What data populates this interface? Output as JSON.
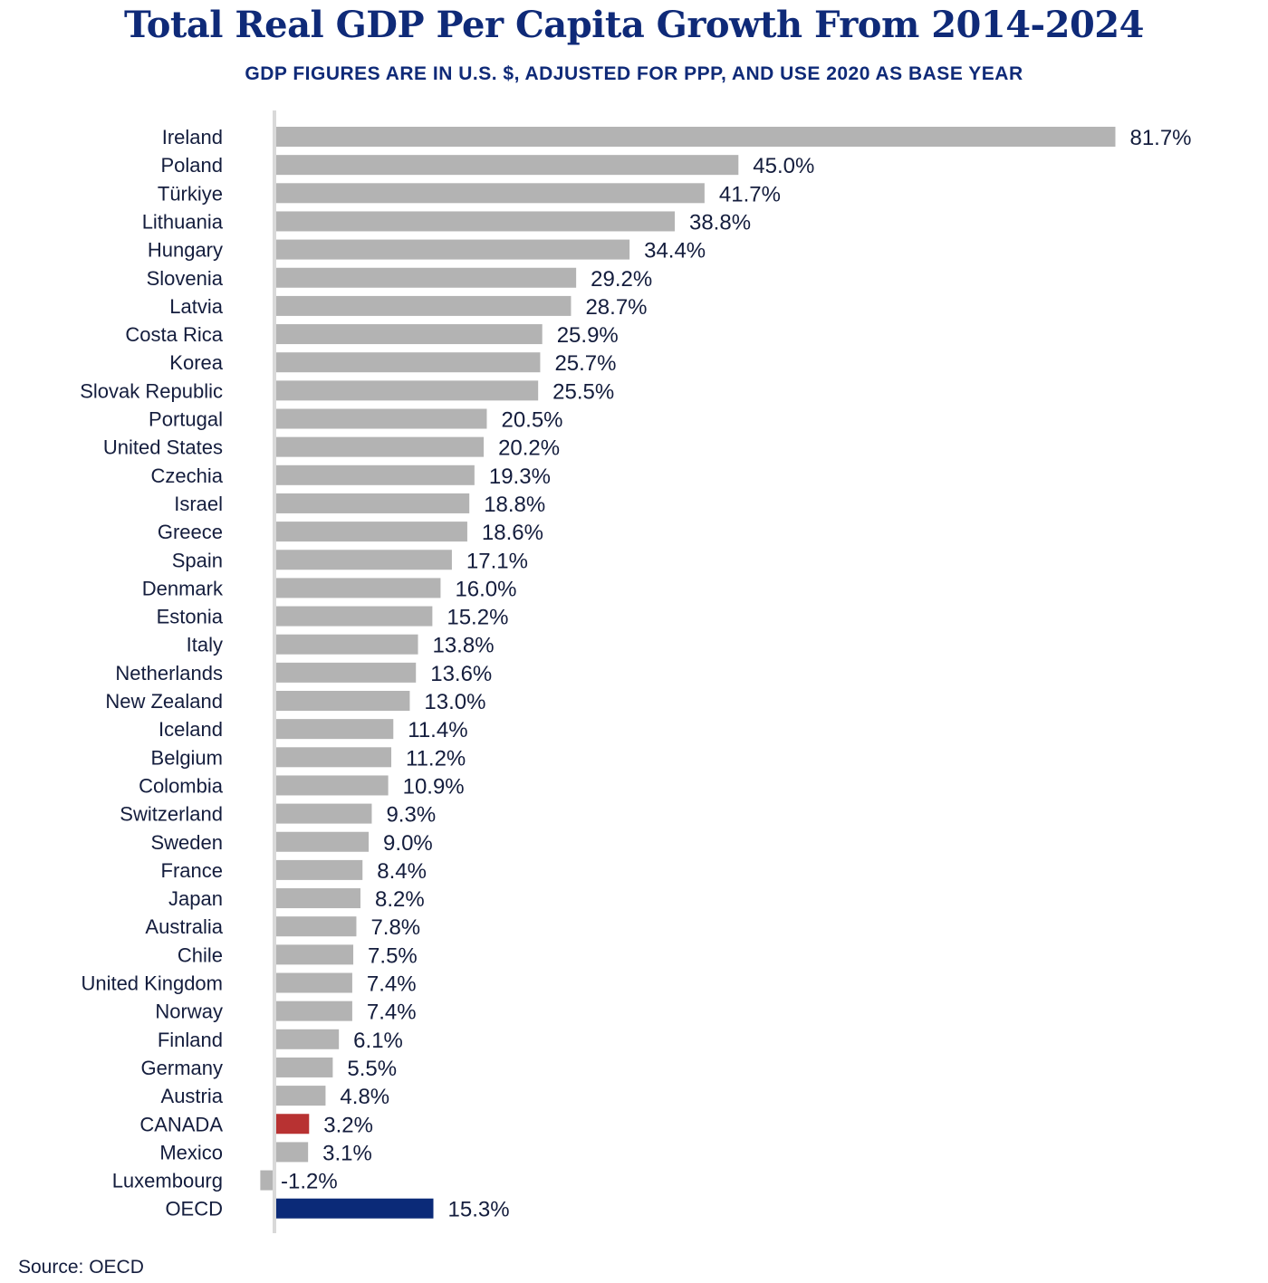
{
  "chart_data": {
    "type": "bar",
    "orientation": "horizontal",
    "title": "Total Real GDP Per Capita Growth From 2014-2024",
    "subtitle": "GDP FIGURES ARE IN U.S. $, ADJUSTED FOR PPP, AND USE 2020 AS BASE YEAR",
    "xlabel": "",
    "ylabel": "",
    "value_suffix": "%",
    "xlim": [
      -1.2,
      81.7
    ],
    "grid": false,
    "legend": "none",
    "categories": [
      "Ireland",
      "Poland",
      "Türkiye",
      "Lithuania",
      "Hungary",
      "Slovenia",
      "Latvia",
      "Costa Rica",
      "Korea",
      "Slovak Republic",
      "Portugal",
      "United States",
      "Czechia",
      "Israel",
      "Greece",
      "Spain",
      "Denmark",
      "Estonia",
      "Italy",
      "Netherlands",
      "New Zealand",
      "Iceland",
      "Belgium",
      "Colombia",
      "Switzerland",
      "Sweden",
      "France",
      "Japan",
      "Australia",
      "Chile",
      "United Kingdom",
      "Norway",
      "Finland",
      "Germany",
      "Austria",
      "CANADA",
      "Mexico",
      "Luxembourg",
      "OECD"
    ],
    "values": [
      81.7,
      45.0,
      41.7,
      38.8,
      34.4,
      29.2,
      28.7,
      25.9,
      25.7,
      25.5,
      20.5,
      20.2,
      19.3,
      18.8,
      18.6,
      17.1,
      16.0,
      15.2,
      13.8,
      13.6,
      13.0,
      11.4,
      11.2,
      10.9,
      9.3,
      9.0,
      8.4,
      8.2,
      7.8,
      7.5,
      7.4,
      7.4,
      6.1,
      5.5,
      4.8,
      3.2,
      3.1,
      -1.2,
      15.3
    ],
    "value_labels": [
      "81.7%",
      "45.0%",
      "41.7%",
      "38.8%",
      "34.4%",
      "29.2%",
      "28.7%",
      "25.9%",
      "25.7%",
      "25.5%",
      "20.5%",
      "20.2%",
      "19.3%",
      "18.8%",
      "18.6%",
      "17.1%",
      "16.0%",
      "15.2%",
      "13.8%",
      "13.6%",
      "13.0%",
      "11.4%",
      "11.2%",
      "10.9%",
      "9.3%",
      "9.0%",
      "8.4%",
      "8.2%",
      "7.8%",
      "7.5%",
      "7.4%",
      "7.4%",
      "6.1%",
      "5.5%",
      "4.8%",
      "3.2%",
      "3.1%",
      "-1.2%",
      "15.3%"
    ],
    "highlights": {
      "CANADA": "#b83232",
      "OECD": "#0b2a78"
    },
    "default_bar_color": "#b3b3b3",
    "source": "Source: OECD"
  }
}
